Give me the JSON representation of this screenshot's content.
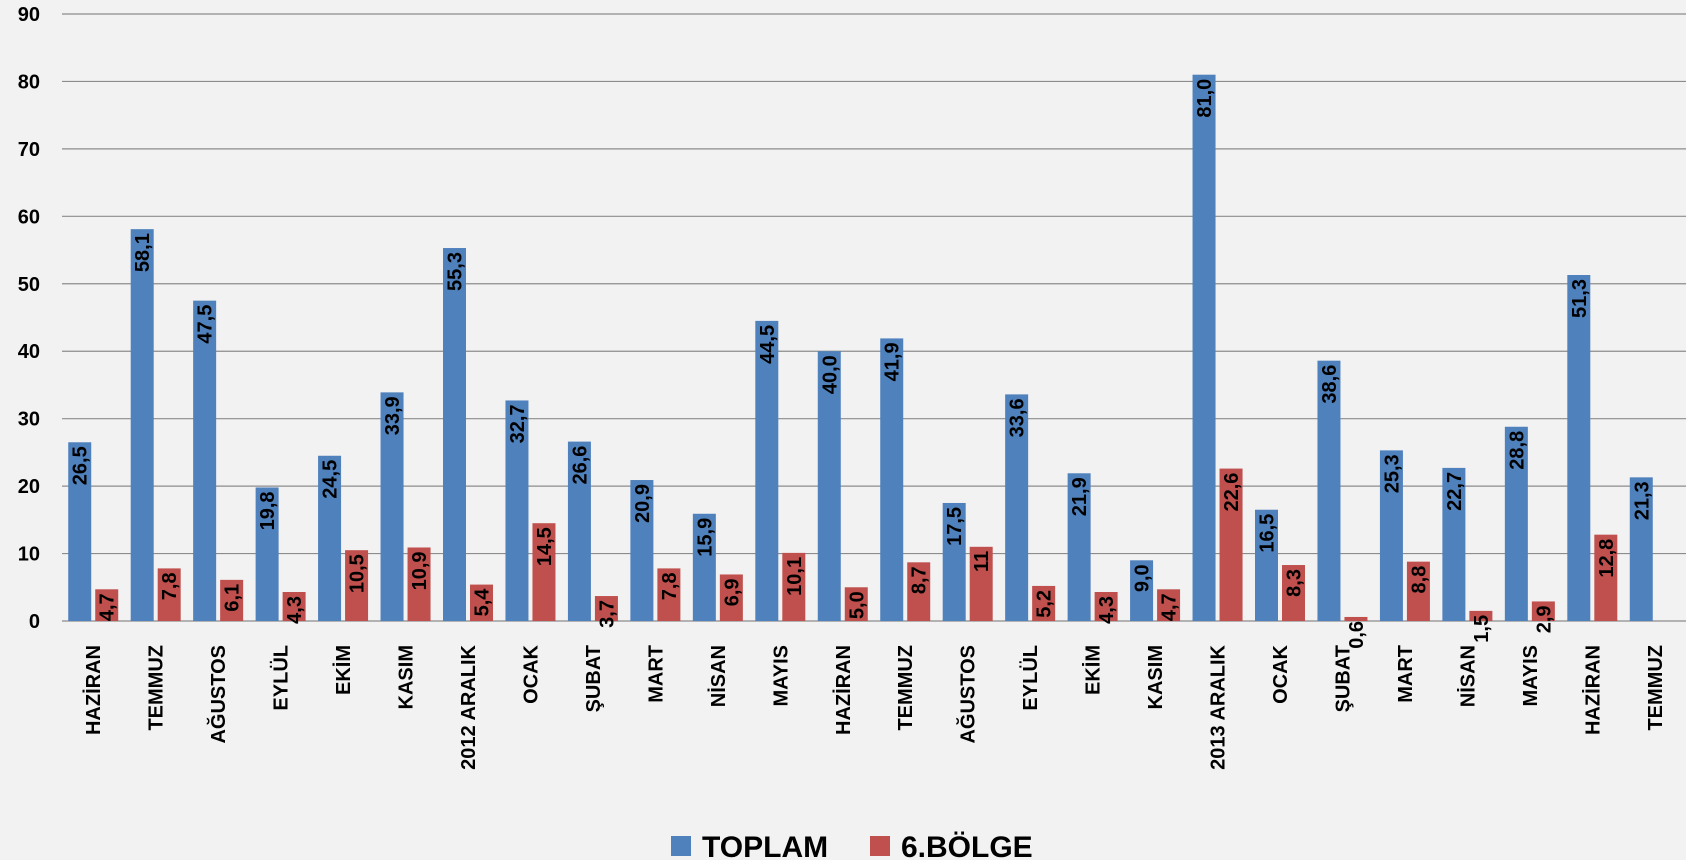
{
  "chart_data": {
    "type": "bar",
    "categories": [
      "HAZİRAN",
      "TEMMUZ",
      "AĞUSTOS",
      "EYLÜL",
      "EKİM",
      "KASIM",
      "2012 ARALIK",
      "OCAK",
      "ŞUBAT",
      "MART",
      "NİSAN",
      "MAYIS",
      "HAZİRAN",
      "TEMMUZ",
      "AĞUSTOS",
      "EYLÜL",
      "EKİM",
      "KASIM",
      "2013 ARALIK",
      "OCAK",
      "ŞUBAT",
      "MART",
      "NİSAN",
      "MAYIS",
      "HAZİRAN",
      "TEMMUZ"
    ],
    "series": [
      {
        "name": "TOPLAM",
        "color": "#4f81bd",
        "values": [
          26.5,
          58.1,
          47.5,
          19.8,
          24.5,
          33.9,
          55.3,
          32.7,
          26.6,
          20.9,
          15.9,
          44.5,
          40.0,
          41.9,
          17.5,
          33.6,
          21.9,
          9.0,
          81.0,
          16.5,
          38.6,
          25.3,
          22.7,
          28.8,
          51.3,
          21.3
        ],
        "labels": [
          "26,5",
          "58,1",
          "47,5",
          "19,8",
          "24,5",
          "33,9",
          "55,3",
          "32,7",
          "26,6",
          "20,9",
          "15,9",
          "44,5",
          "40,0",
          "41,9",
          "17,5",
          "33,6",
          "21,9",
          "9,0",
          "81,0",
          "16,5",
          "38,6",
          "25,3",
          "22,7",
          "28,8",
          "51,3",
          "21,3"
        ]
      },
      {
        "name": "6.BÖLGE",
        "color": "#c0504d",
        "values": [
          4.7,
          7.8,
          6.1,
          4.3,
          10.5,
          10.9,
          5.4,
          14.5,
          3.7,
          7.8,
          6.9,
          10.1,
          5.0,
          8.7,
          11,
          5.2,
          4.3,
          4.7,
          22.6,
          8.3,
          0.6,
          8.8,
          1.5,
          2.9,
          12.8,
          null
        ],
        "labels": [
          "4,7",
          "7,8",
          "6,1",
          "4,3",
          "10,5",
          "10,9",
          "5,4",
          "14,5",
          "3,7",
          "7,8",
          "6,9",
          "10,1",
          "5,0",
          "8,7",
          "11",
          "5,2",
          "4,3",
          "4,7",
          "22,6",
          "8,3",
          "0,6",
          "8,8",
          "1,5",
          "2,9",
          "12,8",
          ""
        ]
      }
    ],
    "ylim": [
      0,
      90
    ],
    "yticks": [
      0,
      10,
      20,
      30,
      40,
      50,
      60,
      70,
      80,
      90
    ],
    "grid": true,
    "legend_position": "bottom"
  }
}
